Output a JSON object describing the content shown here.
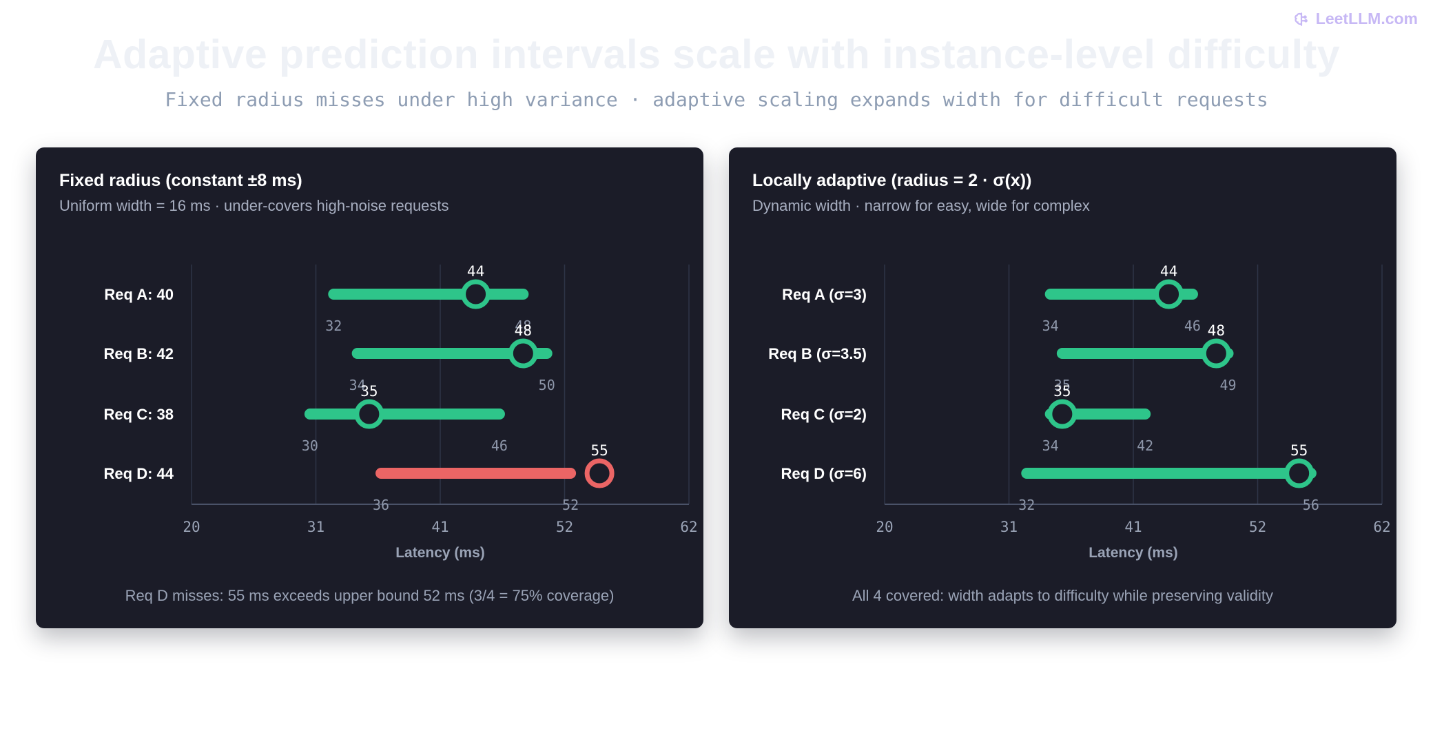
{
  "brand": "LeetLLM.com",
  "title": "Adaptive prediction intervals scale with instance-level difficulty",
  "subtitle": "Fixed radius misses under high variance · adaptive scaling expands width for difficult requests",
  "colors": {
    "covered": "#2ec58a",
    "miss": "#eb6565",
    "panel_bg": "#1b1c28",
    "grid": "#2e3447",
    "axis": "#4a5268"
  },
  "chart_data": [
    {
      "type": "interval",
      "title": "Fixed radius (constant ±8 ms)",
      "subtitle": "Uniform width = 16 ms · under-covers high-noise requests",
      "xlabel": "Latency (ms)",
      "xlim": [
        20,
        62
      ],
      "xticks": [
        "20",
        "31",
        "41",
        "52",
        "62"
      ],
      "grid": true,
      "rows": [
        {
          "label": "Req A: 40",
          "lower": 32,
          "upper": 48,
          "actual": 44,
          "covered": true
        },
        {
          "label": "Req B: 42",
          "lower": 34,
          "upper": 50,
          "actual": 48,
          "covered": true
        },
        {
          "label": "Req C: 38",
          "lower": 30,
          "upper": 46,
          "actual": 35,
          "covered": true
        },
        {
          "label": "Req D: 44",
          "lower": 36,
          "upper": 52,
          "actual": 55,
          "covered": false
        }
      ],
      "footer": "Req D misses: 55 ms exceeds upper bound 52 ms (3/4 = 75% coverage)"
    },
    {
      "type": "interval",
      "title": "Locally adaptive (radius = 2 · σ(x))",
      "subtitle": "Dynamic width · narrow for easy, wide for complex",
      "xlabel": "Latency (ms)",
      "xlim": [
        20,
        62
      ],
      "xticks": [
        "20",
        "31",
        "41",
        "52",
        "62"
      ],
      "grid": true,
      "rows": [
        {
          "label": "Req A (σ=3)",
          "lower": 34,
          "upper": 46,
          "actual": 44,
          "covered": true
        },
        {
          "label": "Req B (σ=3.5)",
          "lower": 35,
          "upper": 49,
          "actual": 48,
          "covered": true
        },
        {
          "label": "Req C (σ=2)",
          "lower": 34,
          "upper": 42,
          "actual": 35,
          "covered": true
        },
        {
          "label": "Req D (σ=6)",
          "lower": 32,
          "upper": 56,
          "actual": 55,
          "covered": true
        }
      ],
      "footer": "All 4 covered: width adapts to difficulty while preserving validity"
    }
  ]
}
